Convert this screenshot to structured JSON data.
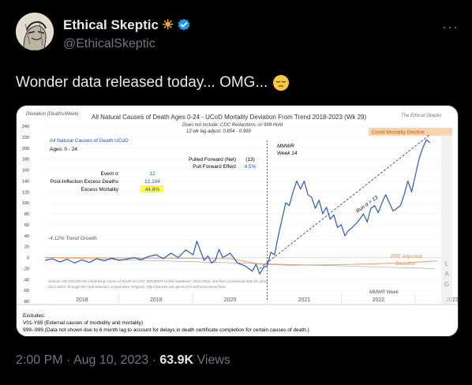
{
  "tweet": {
    "display_name": "Ethical Skeptic",
    "name_emoji": "☀",
    "handle": "@EthicalSkeptic",
    "more": "···",
    "text": "Wonder data released today... OMG...",
    "text_emoji": "😔",
    "time": "2:00 PM",
    "date": "Aug 10, 2023",
    "sep": "·",
    "views_count": "63.9K",
    "views_label": "Views",
    "avatar_icon": "sketch-portrait-icon",
    "verified_icon": "verified-badge-icon",
    "verified_color": "#1d9bf0"
  },
  "chart_data": {
    "type": "line",
    "title": "All Natural Causes of Death Ages 0-24 - UCoD Mortality Deviation From Trend 2018-2023 (Wk 29)",
    "subtitle1": "Does not include: CDC Redactions, or 999 Hold",
    "subtitle2": "12 wk lag adjust: 0.854 - 0.999",
    "watermark": "The Ethical Skeptic",
    "ylabel": "Deviation (Deaths/Week)",
    "ylim": [
      -80,
      240
    ],
    "yticks": [
      -80,
      -60,
      -40,
      -20,
      0,
      20,
      40,
      60,
      80,
      100,
      120,
      140,
      160,
      180,
      200,
      220,
      240
    ],
    "xticks": [
      "2018",
      "2019",
      "2020",
      "2021",
      "2022",
      "2023"
    ],
    "legend_title": "All Natural Causes of Death UCoD",
    "legend_ages": "Ages: 0 - 24",
    "stats": [
      {
        "label": "Event σ",
        "value": "12"
      },
      {
        "label": "Post-Inflection Excess Deaths",
        "value": "12,104"
      },
      {
        "label": "Excess Mortality",
        "value": "44.8%"
      }
    ],
    "pulled": [
      {
        "label": "Pulled Forward (Net)",
        "value": "(13)"
      },
      {
        "label": "Pull Forward Effect",
        "value": "4.5%"
      }
    ],
    "mmwr_label": "MMWR",
    "week_label": "Week 14",
    "trend_label": "-4.12% Trend Growth",
    "run_label": "Run σ = 13",
    "pfe_label1": "PFE Adjusted",
    "pfe_label2": "Baseline",
    "covid_label": "Covid Mortality Decline",
    "mmwr_week_label": "MMWR Week",
    "lag_letters": [
      "L",
      "A",
      "G"
    ],
    "source1": "Source: US CDC/NCHS Underlying Cause of Death on CDC WONDER Online Database, 2018-2020, and from provisional data for years",
    "source2": "2021-2023, through the Vital Statistics Cooperative Program; http://wonder.cdc.gov/mcd-icd10-provisional.html",
    "exclusions_title": "Excludes:",
    "exclusion1": "V01-Y89 (External causes of morbidity and mortality)",
    "exclusion2": "999--999 (Data not shown due to 6 month lag to account for delays in death certificate completion for certain causes of death.)",
    "series_main": [
      [
        2018.0,
        -5
      ],
      [
        2018.1,
        -2
      ],
      [
        2018.2,
        -8
      ],
      [
        2018.3,
        -3
      ],
      [
        2018.4,
        -10
      ],
      [
        2018.5,
        -4
      ],
      [
        2018.6,
        -9
      ],
      [
        2018.7,
        -2
      ],
      [
        2018.8,
        -6
      ],
      [
        2018.9,
        -1
      ],
      [
        2019.0,
        -5
      ],
      [
        2019.1,
        -3
      ],
      [
        2019.2,
        0
      ],
      [
        2019.3,
        -4
      ],
      [
        2019.4,
        2
      ],
      [
        2019.5,
        5
      ],
      [
        2019.6,
        -2
      ],
      [
        2019.7,
        8
      ],
      [
        2019.8,
        0
      ],
      [
        2019.9,
        14
      ],
      [
        2020.0,
        5
      ],
      [
        2020.05,
        30
      ],
      [
        2020.1,
        12
      ],
      [
        2020.15,
        -5
      ],
      [
        2020.2,
        3
      ],
      [
        2020.25,
        -10
      ],
      [
        2020.3,
        -5
      ],
      [
        2020.35,
        15
      ],
      [
        2020.4,
        0
      ],
      [
        2020.5,
        8
      ],
      [
        2020.6,
        -10
      ],
      [
        2020.7,
        -15
      ],
      [
        2020.8,
        -25
      ],
      [
        2020.85,
        -12
      ],
      [
        2020.9,
        -30
      ],
      [
        2020.95,
        -18
      ],
      [
        2021.0,
        -15
      ],
      [
        2021.05,
        10
      ],
      [
        2021.1,
        5
      ],
      [
        2021.15,
        40
      ],
      [
        2021.2,
        70
      ],
      [
        2021.25,
        100
      ],
      [
        2021.3,
        95
      ],
      [
        2021.35,
        120
      ],
      [
        2021.4,
        140
      ],
      [
        2021.45,
        125
      ],
      [
        2021.5,
        140
      ],
      [
        2021.55,
        115
      ],
      [
        2021.6,
        110
      ],
      [
        2021.65,
        90
      ],
      [
        2021.7,
        105
      ],
      [
        2021.75,
        80
      ],
      [
        2021.8,
        92
      ],
      [
        2021.85,
        70
      ],
      [
        2021.9,
        78
      ],
      [
        2021.95,
        55
      ],
      [
        2022.0,
        60
      ],
      [
        2022.05,
        40
      ],
      [
        2022.1,
        50
      ],
      [
        2022.15,
        55
      ],
      [
        2022.2,
        62
      ],
      [
        2022.25,
        70
      ],
      [
        2022.3,
        80
      ],
      [
        2022.35,
        65
      ],
      [
        2022.4,
        90
      ],
      [
        2022.45,
        95
      ],
      [
        2022.5,
        82
      ],
      [
        2022.55,
        100
      ],
      [
        2022.6,
        115
      ],
      [
        2022.65,
        100
      ],
      [
        2022.7,
        85
      ],
      [
        2022.75,
        90
      ],
      [
        2022.8,
        95
      ],
      [
        2022.85,
        115
      ],
      [
        2022.9,
        140
      ],
      [
        2022.95,
        120
      ],
      [
        2023.0,
        150
      ],
      [
        2023.05,
        180
      ],
      [
        2023.1,
        200
      ],
      [
        2023.15,
        215
      ],
      [
        2023.2,
        210
      ]
    ],
    "series_trend": [
      [
        2018.0,
        0
      ],
      [
        2023.25,
        -20
      ]
    ],
    "series_run": [
      [
        2020.9,
        -20
      ],
      [
        2023.2,
        225
      ]
    ]
  }
}
